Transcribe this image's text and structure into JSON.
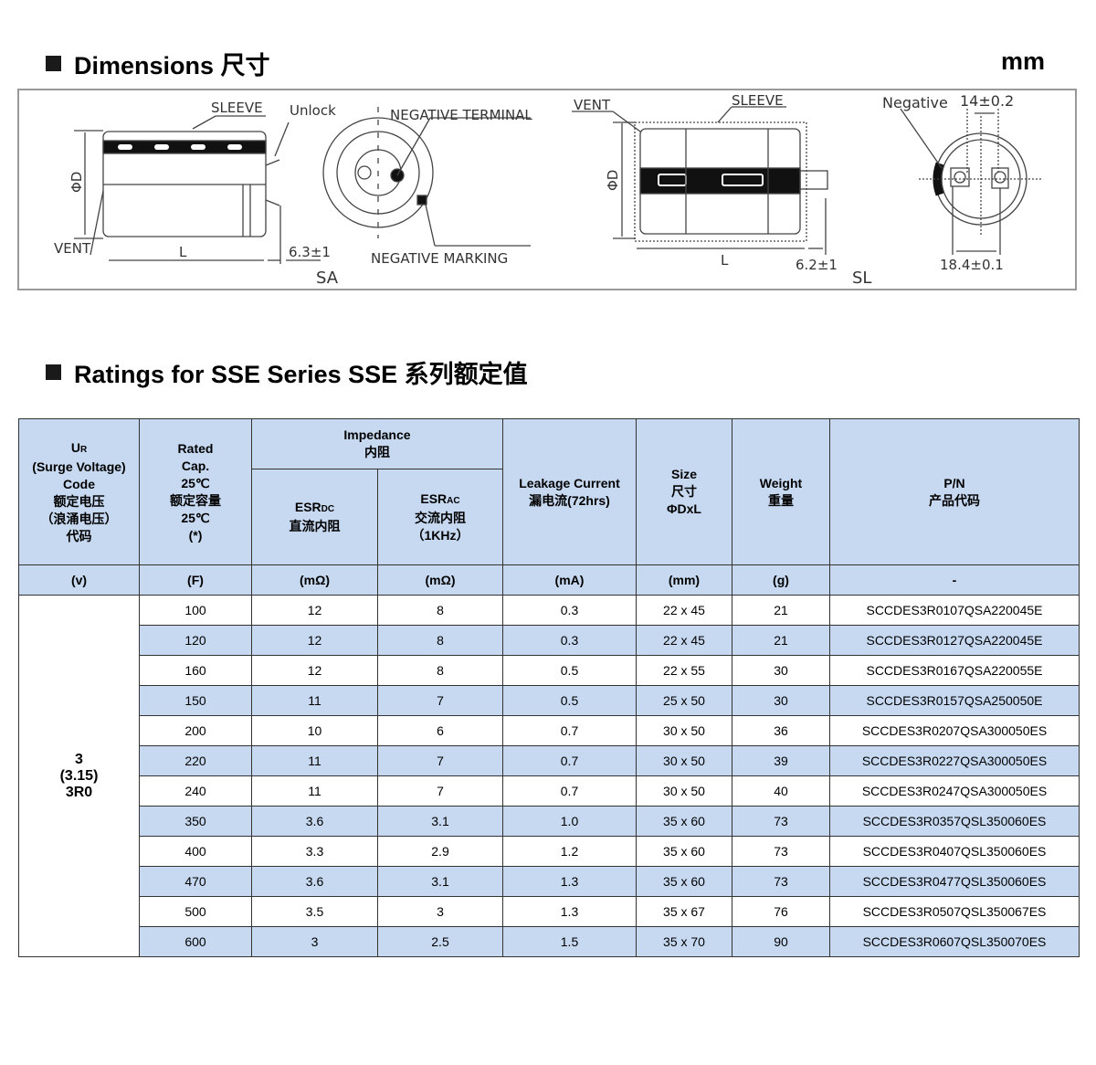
{
  "dimensions": {
    "title": "Dimensions  尺寸",
    "unit": "mm",
    "labels": {
      "sleeve": "SLEEVE",
      "unlock": "Unlock",
      "neg_terminal": "NEGATIVE TERMINAL",
      "vent": "VENT",
      "phi_d": "ΦD",
      "l": "L",
      "sa_lead": "6.3±1",
      "neg_marking": "NEGATIVE MARKING",
      "sa": "SA",
      "vent2": "VENT",
      "sleeve2": "SLEEVE",
      "phi_d2": "ΦD",
      "l2": "L",
      "sl_lead": "6.2±1",
      "sl": "SL",
      "negative": "Negative",
      "pitch_top": "14±0.2",
      "pitch_bottom": "18.4±0.1"
    }
  },
  "ratings": {
    "title": "Ratings for SSE Series   SSE 系列额定值",
    "headers": {
      "ur_main": "U",
      "ur_sub": "R",
      "ur_rest": [
        "(Surge Voltage)",
        "Code",
        "额定电压",
        "（浪涌电压）",
        "代码"
      ],
      "cap": [
        "Rated",
        "Cap.",
        "25℃",
        "额定容量",
        "25℃",
        "(*)"
      ],
      "impedance": [
        "Impedance",
        "内阻"
      ],
      "esrdc_main": "ESR",
      "esrdc_sub": "DC",
      "esrdc_cn": "直流内阻",
      "esrac_main": "ESR",
      "esrac_sub": "AC",
      "esrac_cn": "交流内阻",
      "esrac_freq": "（1KHz）",
      "leak": [
        "Leakage Current",
        "漏电流(72hrs)"
      ],
      "size": [
        "Size",
        "尺寸",
        "ΦDxL"
      ],
      "weight": [
        "Weight",
        "重量"
      ],
      "pn": [
        "P/N",
        "产品代码"
      ]
    },
    "units": [
      "(v)",
      "(F)",
      "(mΩ)",
      "(mΩ)",
      "(mA)",
      "(mm)",
      "(g)",
      "-"
    ],
    "voltage": [
      "3",
      "(3.15)",
      "3R0"
    ],
    "rows": [
      [
        "100",
        "12",
        "8",
        "0.3",
        "22 x 45",
        "21",
        "SCCDES3R0107QSA220045E"
      ],
      [
        "120",
        "12",
        "8",
        "0.3",
        "22 x 45",
        "21",
        "SCCDES3R0127QSA220045E"
      ],
      [
        "160",
        "12",
        "8",
        "0.5",
        "22 x 55",
        "30",
        "SCCDES3R0167QSA220055E"
      ],
      [
        "150",
        "11",
        "7",
        "0.5",
        "25 x 50",
        "30",
        "SCCDES3R0157QSA250050E"
      ],
      [
        "200",
        "10",
        "6",
        "0.7",
        "30 x 50",
        "36",
        "SCCDES3R0207QSA300050ES"
      ],
      [
        "220",
        "11",
        "7",
        "0.7",
        "30 x 50",
        "39",
        "SCCDES3R0227QSA300050ES"
      ],
      [
        "240",
        "11",
        "7",
        "0.7",
        "30 x 50",
        "40",
        "SCCDES3R0247QSA300050ES"
      ],
      [
        "350",
        "3.6",
        "3.1",
        "1.0",
        "35 x 60",
        "73",
        "SCCDES3R0357QSL350060ES"
      ],
      [
        "400",
        "3.3",
        "2.9",
        "1.2",
        "35 x 60",
        "73",
        "SCCDES3R0407QSL350060ES"
      ],
      [
        "470",
        "3.6",
        "3.1",
        "1.3",
        "35 x 60",
        "73",
        "SCCDES3R0477QSL350060ES"
      ],
      [
        "500",
        "3.5",
        "3",
        "1.3",
        "35 x 67",
        "76",
        "SCCDES3R0507QSL350067ES"
      ],
      [
        "600",
        "3",
        "2.5",
        "1.5",
        "35 x 70",
        "90",
        "SCCDES3R0607QSL350070ES"
      ]
    ]
  },
  "colors": {
    "header": "#c6d9f1",
    "border": "#333333"
  }
}
